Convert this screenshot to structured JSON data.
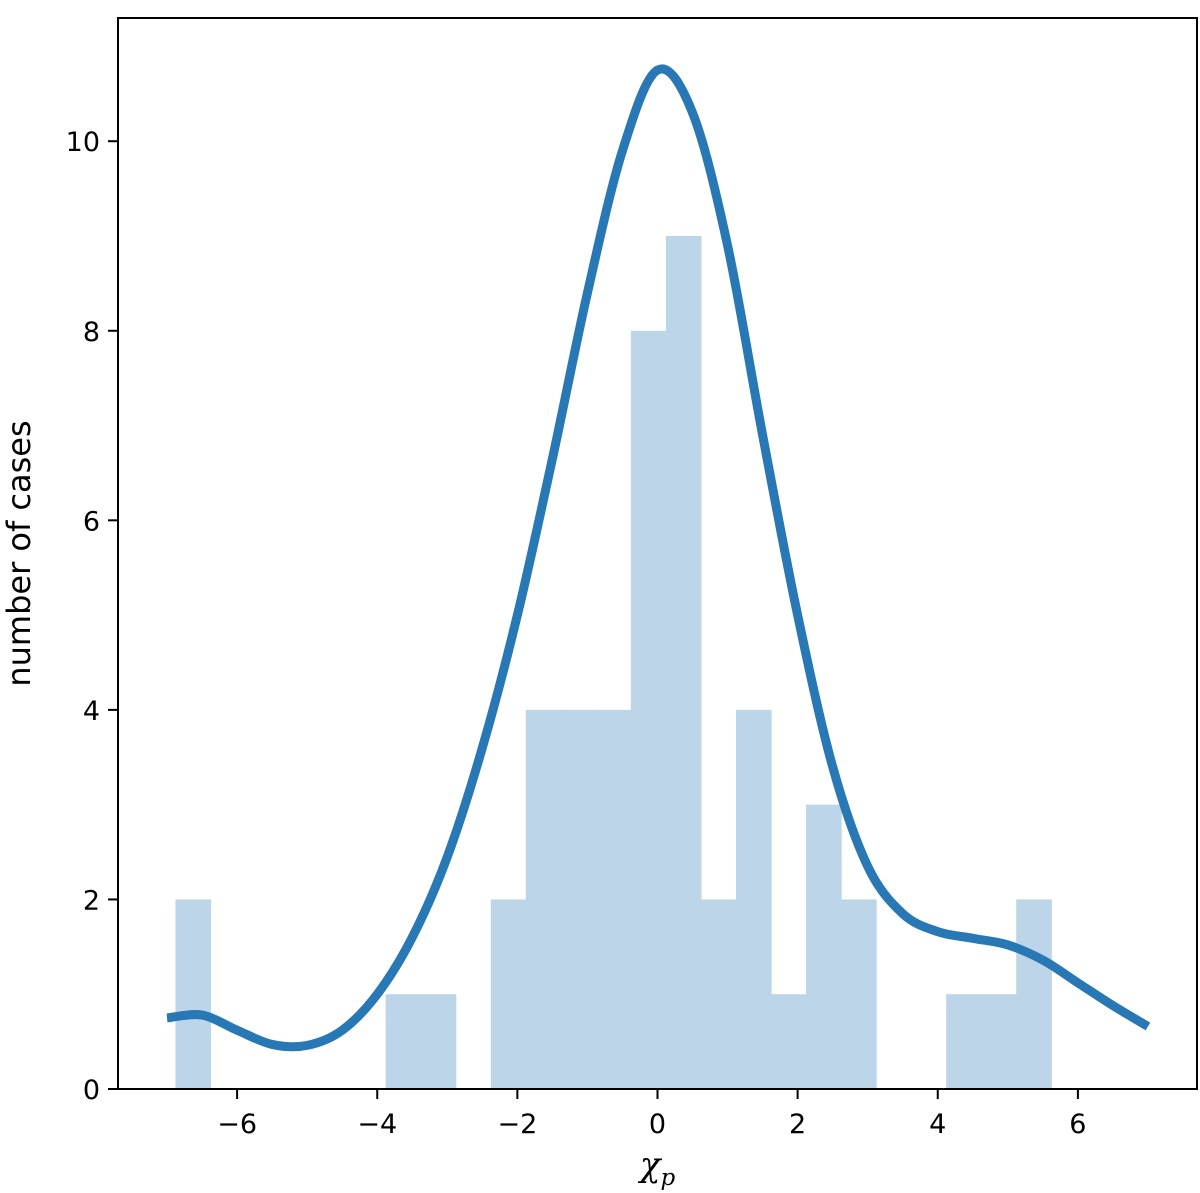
{
  "chart_data": {
    "type": "bar",
    "subtype": "histogram-with-kde",
    "title": "",
    "xlabel": "χ",
    "xlabel_subscript": "p",
    "ylabel": "number of cases",
    "xlim": [
      -7.7,
      7.7
    ],
    "ylim": [
      0,
      11.3
    ],
    "xticks": [
      -6,
      -4,
      -2,
      0,
      2,
      4,
      6
    ],
    "xtick_labels": [
      "−6",
      "−4",
      "−2",
      "0",
      "2",
      "4",
      "6"
    ],
    "yticks": [
      0,
      2,
      4,
      6,
      8,
      10
    ],
    "ytick_labels": [
      "0",
      "2",
      "4",
      "6",
      "8",
      "10"
    ],
    "grid": false,
    "legend": "none",
    "histogram": {
      "color": "#bdd5e9",
      "bins": [
        {
          "x0": -6.88,
          "x1": -6.38,
          "count": 2
        },
        {
          "x0": -3.88,
          "x1": -3.38,
          "count": 1
        },
        {
          "x0": -3.38,
          "x1": -2.88,
          "count": 1
        },
        {
          "x0": -2.38,
          "x1": -1.88,
          "count": 2
        },
        {
          "x0": -1.88,
          "x1": -1.38,
          "count": 4
        },
        {
          "x0": -1.38,
          "x1": -0.88,
          "count": 4
        },
        {
          "x0": -0.88,
          "x1": -0.38,
          "count": 4
        },
        {
          "x0": -0.38,
          "x1": 0.12,
          "count": 8
        },
        {
          "x0": 0.12,
          "x1": 0.62,
          "count": 9
        },
        {
          "x0": 0.62,
          "x1": 1.12,
          "count": 2
        },
        {
          "x0": 1.12,
          "x1": 1.62,
          "count": 4
        },
        {
          "x0": 1.62,
          "x1": 2.12,
          "count": 1
        },
        {
          "x0": 2.12,
          "x1": 2.62,
          "count": 3
        },
        {
          "x0": 2.62,
          "x1": 3.12,
          "count": 2
        },
        {
          "x0": 4.12,
          "x1": 4.62,
          "count": 1
        },
        {
          "x0": 4.62,
          "x1": 5.12,
          "count": 1
        },
        {
          "x0": 5.12,
          "x1": 5.62,
          "count": 2
        }
      ]
    },
    "kde": {
      "color": "#2878b5",
      "x": [
        -7.0,
        -6.5,
        -6.0,
        -5.5,
        -5.0,
        -4.5,
        -4.0,
        -3.5,
        -3.0,
        -2.5,
        -2.0,
        -1.5,
        -1.0,
        -0.5,
        0.0,
        0.5,
        1.0,
        1.5,
        2.0,
        2.5,
        3.0,
        3.5,
        4.0,
        4.5,
        5.0,
        5.5,
        6.0,
        6.5,
        7.0
      ],
      "y": [
        0.75,
        0.78,
        0.62,
        0.47,
        0.46,
        0.62,
        1.0,
        1.6,
        2.45,
        3.6,
        5.0,
        6.65,
        8.4,
        9.9,
        10.75,
        10.3,
        8.9,
        6.9,
        5.0,
        3.4,
        2.35,
        1.85,
        1.66,
        1.59,
        1.52,
        1.36,
        1.12,
        0.88,
        0.66
      ]
    }
  }
}
